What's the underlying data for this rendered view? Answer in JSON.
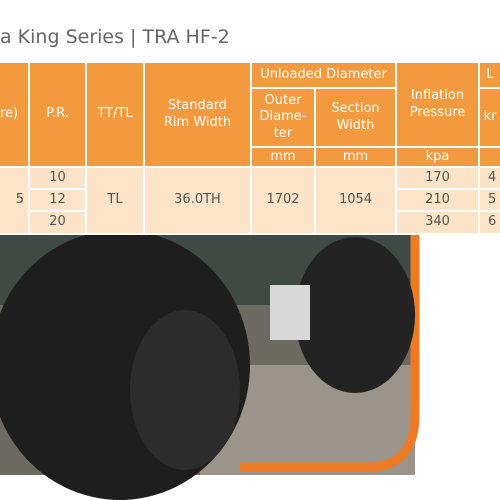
{
  "title": "a King Series | TRA HF-2",
  "table": {
    "header": {
      "size": "re)",
      "ply_rating": "P.R.",
      "tube_type": "TT/TL",
      "rim": "Standard Rim Width",
      "unloaded_diameter": "Unloaded Diameter",
      "outer_diameter": [
        "Outer",
        "Diame-",
        "ter"
      ],
      "section_width": "Section Width",
      "inflation_pressure": "Inflation Pressure",
      "load": "L",
      "load_unit": "kr",
      "units": {
        "outer_diameter": "mm",
        "section_width": "mm",
        "inflation_pressure": "kpa"
      }
    },
    "body": {
      "size": "5",
      "ply_rating": [
        "10",
        "12",
        "20"
      ],
      "tube_type": "TL",
      "rim": "36.0TH",
      "outer_diameter": "1702",
      "section_width": "1054",
      "inflation_pressure": [
        "170",
        "210",
        "340"
      ],
      "load": [
        "4",
        "5",
        "6"
      ]
    }
  }
}
